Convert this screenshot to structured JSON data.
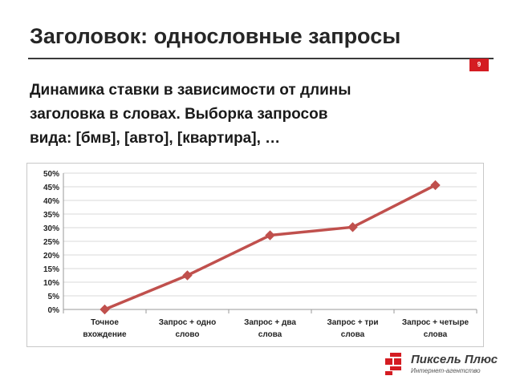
{
  "slide": {
    "title": "Заголовок: однословные запросы",
    "page_number": "9",
    "subtitle_lines": [
      "Динамика ставки в зависимости от длины",
      "заголовка в словах. Выборка запросов",
      "вида: [бмв], [авто], [квартира], …"
    ],
    "accent_color": "#d41c22"
  },
  "logo": {
    "name": "Пиксель Плюс",
    "tagline": "Интернет-агентство",
    "icon": "pixel-plus-logo-icon"
  },
  "chart_data": {
    "type": "line",
    "categories": [
      [
        "Точное",
        "вхождение"
      ],
      [
        "Запрос + одно",
        "слово"
      ],
      [
        "Запрос + два",
        "слова"
      ],
      [
        "Запрос + три",
        "слова"
      ],
      [
        "Запрос + четыре",
        "слова"
      ]
    ],
    "series": [
      {
        "values": [
          0.0,
          12.5,
          27.2,
          30.2,
          45.6
        ],
        "color": "#c0504d",
        "marker": "diamond"
      }
    ],
    "ylim": [
      0,
      50
    ],
    "yticks": [
      "0%",
      "5%",
      "10%",
      "15%",
      "20%",
      "25%",
      "30%",
      "35%",
      "40%",
      "45%",
      "50%"
    ],
    "grid": true,
    "legend": false
  }
}
